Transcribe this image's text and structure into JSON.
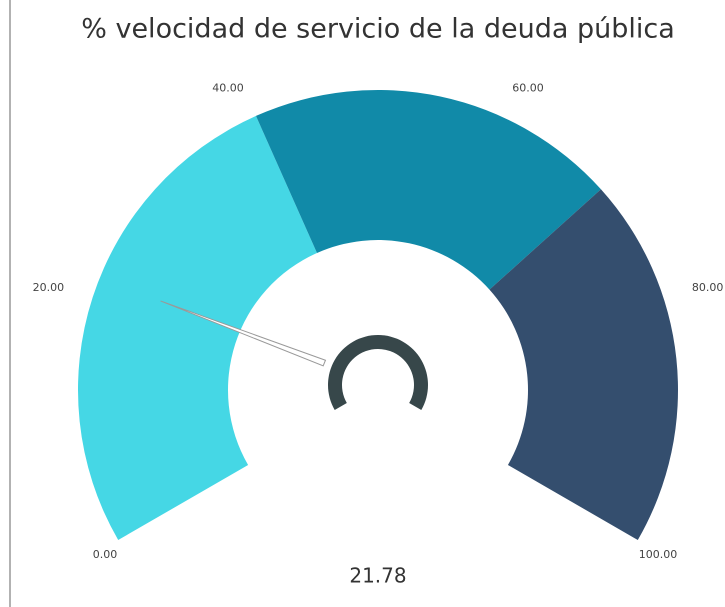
{
  "chart_data": {
    "type": "gauge",
    "title": "% velocidad de servicio de la deuda pública",
    "value": 21.78,
    "ylim": [
      0,
      100
    ],
    "yticks": [
      {
        "value": 0,
        "label": "0.00"
      },
      {
        "value": 20,
        "label": "20.00"
      },
      {
        "value": 40,
        "label": "40.00"
      },
      {
        "value": 60,
        "label": "60.00"
      },
      {
        "value": 80,
        "label": "80.00"
      },
      {
        "value": 100,
        "label": "100.00"
      }
    ],
    "bands": [
      {
        "from": 0,
        "to": 40,
        "color": "#45d7e5"
      },
      {
        "from": 40,
        "to": 70,
        "color": "#118aa8"
      },
      {
        "from": 70,
        "to": 100,
        "color": "#344e6e"
      }
    ],
    "needle_color": "#999999",
    "hub_color": "#37474a"
  }
}
